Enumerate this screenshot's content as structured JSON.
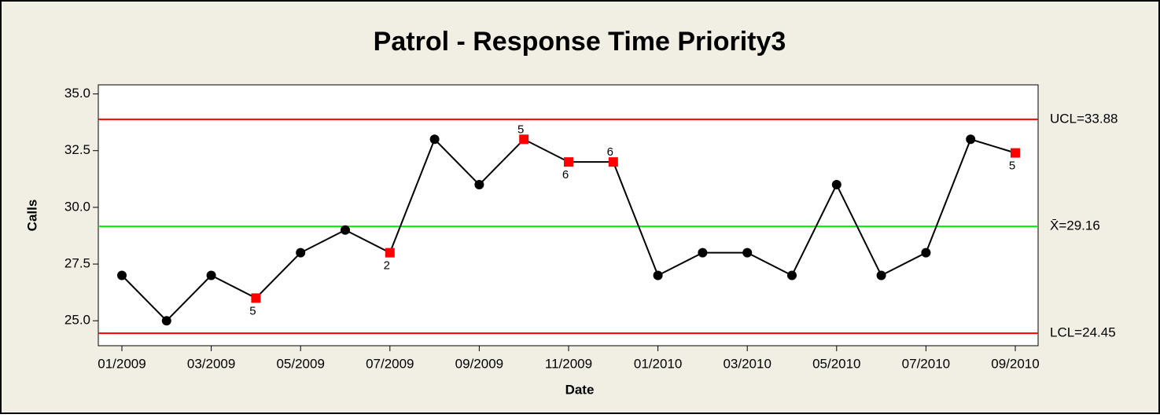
{
  "chart_data": {
    "type": "line",
    "title": "Patrol - Response Time Priority3",
    "x_label": "Date",
    "y_label": "Calls",
    "categories": [
      "01/2009",
      null,
      "03/2009",
      null,
      "05/2009",
      null,
      "07/2009",
      null,
      "09/2009",
      null,
      "11/2009",
      null,
      "01/2010",
      null,
      "03/2010",
      null,
      "05/2010",
      null,
      "07/2010",
      null,
      "09/2010"
    ],
    "series": [
      {
        "color": "#000000",
        "flag_color": "#ff0000",
        "values": [
          27,
          25,
          27,
          26,
          28,
          29,
          28,
          33,
          31,
          33,
          32,
          32,
          27,
          28,
          28,
          27,
          31,
          27,
          28,
          33,
          32.4
        ],
        "point_labels": [
          null,
          null,
          null,
          "5",
          null,
          null,
          "2",
          null,
          null,
          "5",
          "6",
          "6",
          null,
          null,
          null,
          null,
          null,
          null,
          null,
          null,
          "5"
        ]
      }
    ],
    "reference_lines": [
      {
        "value": 33.88,
        "label": "UCL=33.88",
        "color": "#ff0000"
      },
      {
        "value": 29.16,
        "label": "X̄=29.16",
        "color": "#00ee00"
      },
      {
        "value": 24.45,
        "label": "LCL=24.45",
        "color": "#ff0000"
      }
    ],
    "ylim": [
      23.9,
      35.4
    ],
    "yticks": [
      {
        "value": 25,
        "label": "25.0"
      },
      27.5,
      {
        "value": 30,
        "label": "30.0"
      },
      32.5,
      {
        "value": 35,
        "label": "35.0"
      }
    ]
  }
}
